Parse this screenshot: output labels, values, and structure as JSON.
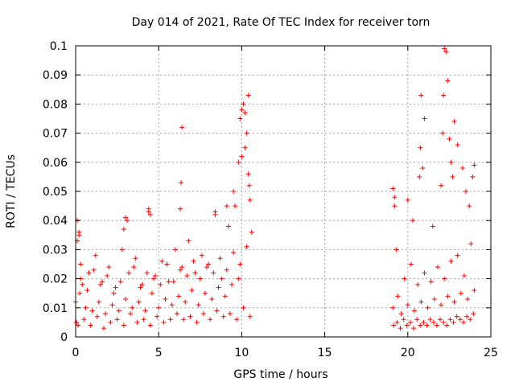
{
  "chart_data": {
    "type": "scatter",
    "title": "Day 014 of 2021, Rate Of TEC Index for receiver torn",
    "xlabel": "GPS time / hours",
    "ylabel": "ROTI / TECUs",
    "xlim": [
      0,
      25
    ],
    "ylim": [
      0,
      0.1
    ],
    "xticks": [
      0,
      5,
      10,
      15,
      20,
      25
    ],
    "xtick_labels": [
      "0",
      "5",
      "10",
      "15",
      "20",
      "25"
    ],
    "yticks": [
      0,
      0.01,
      0.02,
      0.03,
      0.04,
      0.05,
      0.06,
      0.07,
      0.08,
      0.09,
      0.1
    ],
    "ytick_labels": [
      "0",
      "0.01",
      "0.02",
      "0.03",
      "0.04",
      "0.05",
      "0.06",
      "0.07",
      "0.08",
      "0.09",
      "0.1"
    ],
    "grid": true,
    "marker": "+",
    "marker_color": "#ff0000",
    "series": [
      {
        "x": [
          0.0,
          0.1,
          0.2,
          0.3,
          0.4,
          0.6,
          0.8,
          1.0,
          1.2,
          1.4,
          1.6,
          1.8,
          2.0,
          2.2,
          2.4,
          2.6,
          2.8,
          3.0,
          3.2,
          3.4,
          3.6,
          3.8,
          4.0,
          4.2,
          4.4,
          4.6,
          4.8,
          5.0,
          5.2,
          5.4,
          5.6,
          5.8,
          6.0,
          6.2,
          6.4,
          6.6,
          6.8,
          7.0,
          7.2,
          7.4,
          7.6,
          7.8,
          8.0,
          8.2,
          8.4,
          8.6,
          8.8,
          9.0,
          9.2,
          9.4,
          9.6,
          9.8,
          10.0,
          10.2,
          10.4,
          10.6,
          0.05,
          0.15,
          0.25,
          0.5,
          0.9,
          1.3,
          1.7,
          2.1,
          2.5,
          2.9,
          3.3,
          3.7,
          4.1,
          4.5,
          4.9,
          5.3,
          5.7,
          6.1,
          6.5,
          6.9,
          7.3,
          7.7,
          8.1,
          8.5,
          8.9,
          9.3,
          9.7,
          10.1,
          10.5,
          0.1,
          0.2,
          2.9,
          3.0,
          3.1,
          4.4,
          4.5,
          6.3,
          6.4,
          6.35,
          8.4,
          9.1,
          9.5,
          9.8,
          9.9,
          10.0,
          10.1,
          10.2,
          10.3,
          10.4,
          10.45,
          10.5,
          0.3,
          0.7,
          1.1,
          1.5,
          1.9,
          2.3,
          2.7,
          3.5,
          3.9,
          4.3,
          4.7,
          5.1,
          5.5,
          5.9,
          6.3,
          6.7,
          7.1,
          7.5,
          7.9,
          8.3,
          8.7,
          9.1,
          9.5,
          9.9,
          10.3,
          19.1,
          19.2,
          19.3,
          19.4,
          19.6,
          19.8,
          20.0,
          20.2,
          20.4,
          20.6,
          20.8,
          21.0,
          21.2,
          21.4,
          21.6,
          21.8,
          22.0,
          22.2,
          22.4,
          22.6,
          22.8,
          23.0,
          23.2,
          23.4,
          23.6,
          23.8,
          24.0,
          19.15,
          19.35,
          19.55,
          19.75,
          19.95,
          20.15,
          20.35,
          20.55,
          20.75,
          20.95,
          21.15,
          21.35,
          21.55,
          21.75,
          21.95,
          22.15,
          22.35,
          22.55,
          22.75,
          22.95,
          23.15,
          23.35,
          23.55,
          23.75,
          23.95,
          19.1,
          19.2,
          20.0,
          20.3,
          20.7,
          20.75,
          20.8,
          20.9,
          21.0,
          21.5,
          22.0,
          22.1,
          22.15,
          22.2,
          22.3,
          22.4,
          22.5,
          22.6,
          22.7,
          22.8,
          23.0,
          23.3,
          23.5,
          23.7,
          23.9,
          24.0
        ],
        "y": [
          0.012,
          0.04,
          0.036,
          0.025,
          0.018,
          0.01,
          0.022,
          0.009,
          0.028,
          0.012,
          0.019,
          0.008,
          0.024,
          0.011,
          0.017,
          0.009,
          0.03,
          0.013,
          0.022,
          0.01,
          0.027,
          0.012,
          0.018,
          0.009,
          0.043,
          0.015,
          0.021,
          0.01,
          0.026,
          0.013,
          0.019,
          0.011,
          0.03,
          0.014,
          0.024,
          0.012,
          0.033,
          0.016,
          0.022,
          0.011,
          0.028,
          0.015,
          0.025,
          0.013,
          0.043,
          0.017,
          0.02,
          0.014,
          0.038,
          0.018,
          0.045,
          0.02,
          0.062,
          0.077,
          0.083,
          0.036,
          0.005,
          0.004,
          0.015,
          0.006,
          0.004,
          0.007,
          0.003,
          0.005,
          0.006,
          0.004,
          0.008,
          0.005,
          0.006,
          0.004,
          0.007,
          0.005,
          0.006,
          0.008,
          0.006,
          0.007,
          0.005,
          0.008,
          0.006,
          0.009,
          0.007,
          0.008,
          0.006,
          0.01,
          0.007,
          0.033,
          0.035,
          0.037,
          0.041,
          0.04,
          0.044,
          0.042,
          0.044,
          0.072,
          0.053,
          0.042,
          0.045,
          0.05,
          0.06,
          0.075,
          0.078,
          0.08,
          0.065,
          0.07,
          0.056,
          0.052,
          0.047,
          0.02,
          0.016,
          0.023,
          0.018,
          0.021,
          0.015,
          0.019,
          0.024,
          0.017,
          0.022,
          0.02,
          0.018,
          0.025,
          0.019,
          0.023,
          0.021,
          0.026,
          0.02,
          0.024,
          0.022,
          0.027,
          0.023,
          0.029,
          0.025,
          0.031,
          0.01,
          0.048,
          0.03,
          0.014,
          0.008,
          0.02,
          0.011,
          0.025,
          0.009,
          0.018,
          0.012,
          0.022,
          0.01,
          0.019,
          0.013,
          0.024,
          0.011,
          0.02,
          0.014,
          0.026,
          0.012,
          0.028,
          0.015,
          0.021,
          0.013,
          0.032,
          0.016,
          0.004,
          0.005,
          0.003,
          0.006,
          0.004,
          0.005,
          0.003,
          0.006,
          0.004,
          0.005,
          0.004,
          0.006,
          0.005,
          0.004,
          0.006,
          0.005,
          0.004,
          0.006,
          0.005,
          0.007,
          0.006,
          0.005,
          0.007,
          0.006,
          0.008,
          0.051,
          0.045,
          0.047,
          0.04,
          0.055,
          0.065,
          0.083,
          0.058,
          0.075,
          0.038,
          0.052,
          0.07,
          0.083,
          0.099,
          0.098,
          0.088,
          0.068,
          0.06,
          0.055,
          0.074,
          0.066,
          0.058,
          0.05,
          0.045,
          0.055,
          0.059
        ]
      }
    ]
  }
}
